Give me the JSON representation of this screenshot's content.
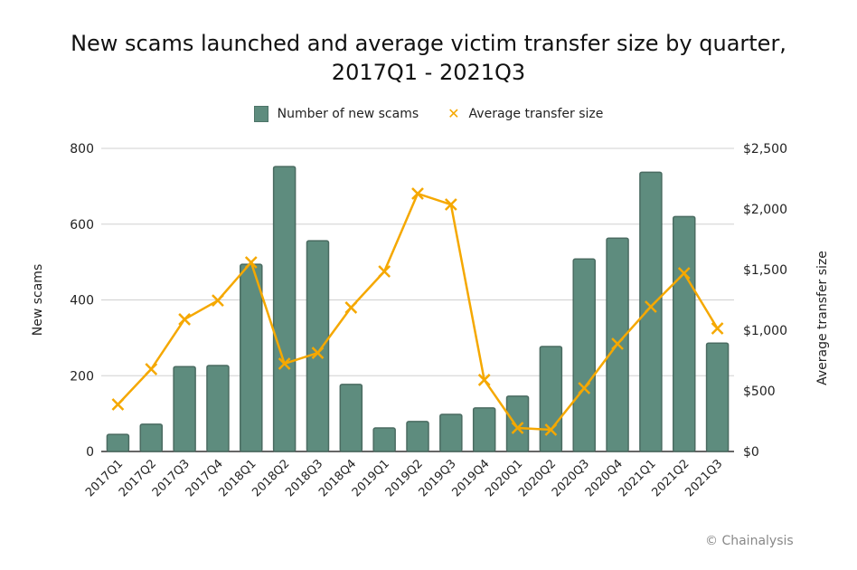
{
  "chart_data": {
    "type": "bar+line",
    "title": "New scams launched and average victim transfer size by quarter, 2017Q1 - 2021Q3",
    "title_lines": [
      "New scams launched and average victim transfer size by quarter,",
      "2017Q1 - 2021Q3"
    ],
    "categories": [
      "2017Q1",
      "2017Q2",
      "2017Q3",
      "2017Q4",
      "2018Q1",
      "2018Q2",
      "2018Q3",
      "2018Q4",
      "2019Q1",
      "2019Q2",
      "2019Q3",
      "2019Q4",
      "2020Q1",
      "2020Q2",
      "2020Q3",
      "2020Q4",
      "2021Q1",
      "2021Q2",
      "2021Q3"
    ],
    "series": [
      {
        "name": "Number of new scams",
        "type": "bar",
        "axis": "left",
        "color": "#5e8c7e",
        "values": [
          45,
          72,
          224,
          227,
          494,
          752,
          556,
          177,
          62,
          79,
          98,
          115,
          146,
          277,
          508,
          563,
          737,
          620,
          286
        ]
      },
      {
        "name": "Average transfer size",
        "type": "line",
        "axis": "right",
        "color": "#f5a800",
        "values": [
          388,
          679,
          1090,
          1245,
          1560,
          724,
          813,
          1187,
          1485,
          2127,
          2037,
          590,
          194,
          179,
          522,
          888,
          1194,
          1470,
          1015
        ]
      }
    ],
    "xlabel": "",
    "ylabel": "New scams",
    "ylabel_right": "Average transfer size",
    "ylim": [
      0,
      800
    ],
    "ylim_right": [
      0,
      2500
    ],
    "yticks": [
      "0",
      "200",
      "400",
      "600",
      "800"
    ],
    "yticks_right": [
      "$0",
      "$500",
      "$1,000",
      "$1,500",
      "$2,000",
      "$2,500"
    ],
    "grid": true,
    "legend_position": "top"
  },
  "legend": {
    "bar_label": "Number of new scams",
    "line_label": "Average transfer size"
  },
  "credit": "© Chainalysis"
}
